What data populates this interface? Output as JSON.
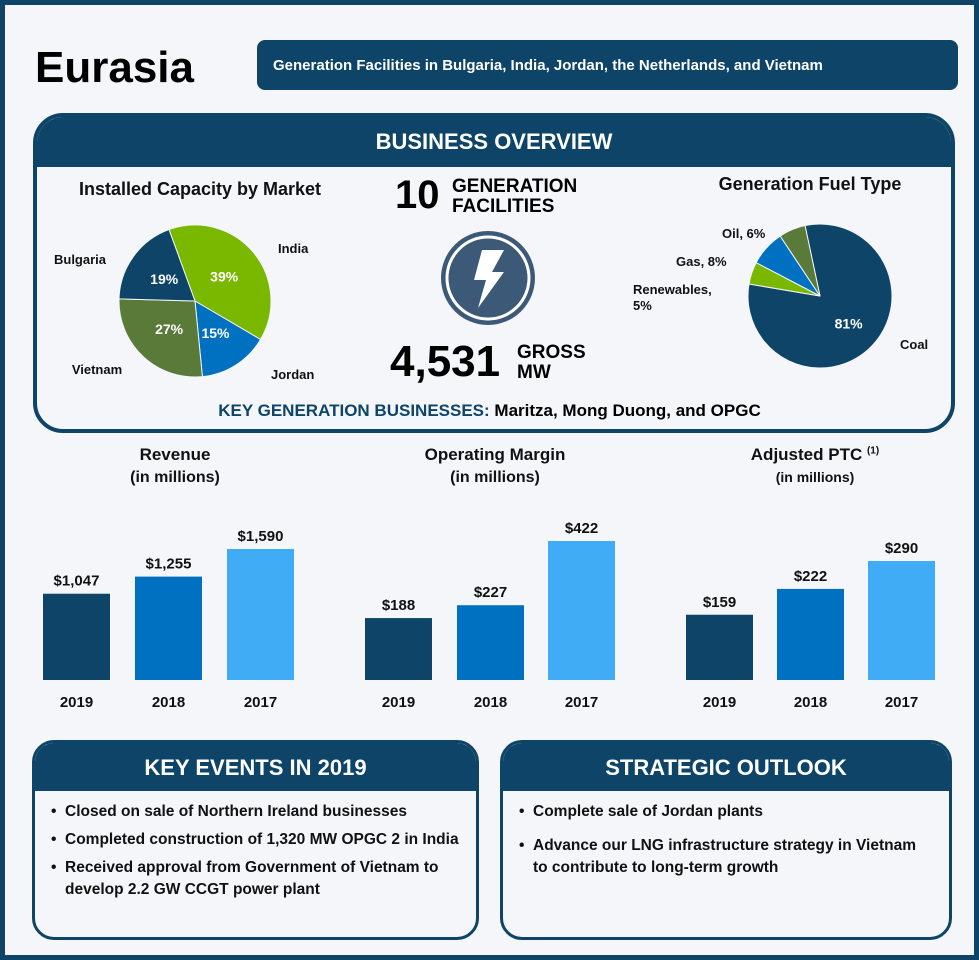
{
  "header": {
    "title": "Eurasia",
    "subtitle": "Generation Facilities in Bulgaria, India, Jordan, the Netherlands, and Vietnam"
  },
  "overview": {
    "heading": "BUSINESS OVERVIEW",
    "facilities_count": "10",
    "facilities_label_1": "GENERATION",
    "facilities_label_2": "FACILITIES",
    "mw_value": "4,531",
    "mw_label_1": "GROSS",
    "mw_label_2": "MW",
    "icon": "lightning-bolt-icon",
    "key_label": "KEY GENERATION BUSINESSES:",
    "key_value": "Maritza, Mong Duong, and OPGC"
  },
  "colors": {
    "navy": "#0d4468",
    "blue": "#0070c0",
    "light_blue": "#41acf6",
    "green": "#7ab800",
    "olive": "#5a7a3a"
  },
  "chart_data": [
    {
      "type": "pie",
      "title": "Installed Capacity by Market",
      "slices": [
        {
          "label": "India",
          "value": 39,
          "text": "39%",
          "color": "#7ab800"
        },
        {
          "label": "Jordan",
          "value": 15,
          "text": "15%",
          "color": "#0070c0"
        },
        {
          "label": "Vietnam",
          "value": 27,
          "text": "27%",
          "color": "#5a7a3a"
        },
        {
          "label": "Bulgaria",
          "value": 19,
          "text": "19%",
          "color": "#0d4468"
        }
      ]
    },
    {
      "type": "pie",
      "title": "Generation Fuel Type",
      "slices": [
        {
          "label": "Coal",
          "value": 81,
          "text": "81%",
          "color": "#0d4468"
        },
        {
          "label": "Renewables, 5%",
          "value": 5,
          "text": "",
          "color": "#7ab800"
        },
        {
          "label": "Gas, 8%",
          "value": 8,
          "text": "",
          "color": "#0070c0"
        },
        {
          "label": "Oil, 6%",
          "value": 6,
          "text": "",
          "color": "#5a7a3a"
        }
      ]
    },
    {
      "type": "bar",
      "title": "Revenue",
      "subtitle": "(in millions)",
      "categories": [
        "2019",
        "2018",
        "2017"
      ],
      "values": [
        1047,
        1255,
        1590
      ],
      "labels": [
        "$1,047",
        "$1,255",
        "$1,590"
      ],
      "colors": [
        "#0d4468",
        "#0070c0",
        "#41acf6"
      ]
    },
    {
      "type": "bar",
      "title": "Operating Margin",
      "subtitle": "(in millions)",
      "categories": [
        "2019",
        "2018",
        "2017"
      ],
      "values": [
        188,
        227,
        422
      ],
      "labels": [
        "$188",
        "$227",
        "$422"
      ],
      "colors": [
        "#0d4468",
        "#0070c0",
        "#41acf6"
      ]
    },
    {
      "type": "bar",
      "title": "Adjusted PTC",
      "footnote": "(1)",
      "subtitle": "(in millions)",
      "categories": [
        "2019",
        "2018",
        "2017"
      ],
      "values": [
        159,
        222,
        290
      ],
      "labels": [
        "$159",
        "$222",
        "$290"
      ],
      "colors": [
        "#0d4468",
        "#0070c0",
        "#41acf6"
      ]
    }
  ],
  "key_events": {
    "heading": "KEY EVENTS IN 2019",
    "items": [
      "Closed on sale of Northern Ireland businesses",
      "Completed construction of 1,320 MW OPGC 2 in India",
      "Received approval from Government of Vietnam to develop 2.2 GW CCGT power plant"
    ]
  },
  "outlook": {
    "heading": "STRATEGIC OUTLOOK",
    "items": [
      "Complete sale of Jordan plants",
      "Advance our LNG infrastructure strategy in Vietnam to contribute to long-term growth"
    ]
  }
}
